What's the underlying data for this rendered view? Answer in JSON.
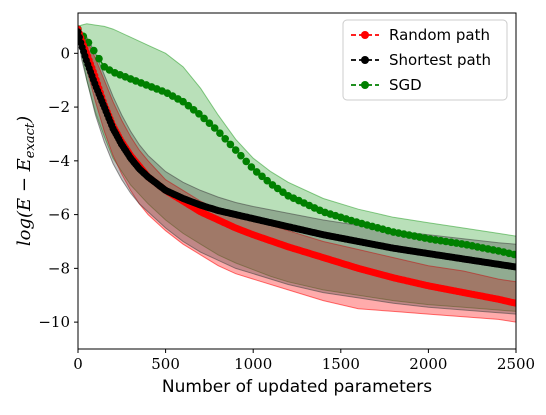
{
  "chart_data": {
    "type": "line",
    "xlabel": "Number of updated parameters",
    "ylabel_main": "log(E − E",
    "ylabel_sub": "exact",
    "ylabel_close": ")",
    "xlim": [
      0,
      2500
    ],
    "ylim": [
      -11,
      1.5
    ],
    "xticks": [
      0,
      500,
      1000,
      1500,
      2000,
      2500
    ],
    "xtick_labels": [
      "0",
      "500",
      "1000",
      "1500",
      "2000",
      "2500"
    ],
    "yticks": [
      0,
      -2,
      -4,
      -6,
      -8,
      -10
    ],
    "ytick_labels": [
      "0",
      "−2",
      "−4",
      "−6",
      "−8",
      "−10"
    ],
    "grid": false,
    "legend_position": "top-right",
    "series": [
      {
        "name": "Random path",
        "color": "#ff0000",
        "fill_color": "#ff0000",
        "line_style": "dashed",
        "marker": "circle",
        "x": [
          0,
          20,
          50,
          100,
          150,
          200,
          250,
          300,
          350,
          400,
          500,
          600,
          700,
          800,
          900,
          1000,
          1200,
          1400,
          1600,
          1800,
          2000,
          2200,
          2400,
          2500
        ],
        "y": [
          0.9,
          0.5,
          0.0,
          -0.9,
          -1.9,
          -2.7,
          -3.3,
          -3.8,
          -4.2,
          -4.6,
          -5.1,
          -5.5,
          -5.9,
          -6.2,
          -6.5,
          -6.75,
          -7.2,
          -7.6,
          -8.0,
          -8.35,
          -8.65,
          -8.9,
          -9.15,
          -9.3
        ],
        "upper": [
          1.0,
          0.8,
          0.5,
          -0.2,
          -1.0,
          -1.8,
          -2.5,
          -3.1,
          -3.6,
          -4.0,
          -4.7,
          -5.1,
          -5.5,
          -5.8,
          -6.0,
          -6.2,
          -6.6,
          -7.0,
          -7.3,
          -7.6,
          -7.9,
          -8.1,
          -8.4,
          -8.5
        ],
        "lower": [
          0.9,
          0.2,
          -0.6,
          -1.8,
          -2.9,
          -3.8,
          -4.5,
          -5.1,
          -5.6,
          -6.0,
          -6.6,
          -7.1,
          -7.5,
          -7.9,
          -8.2,
          -8.4,
          -8.8,
          -9.2,
          -9.5,
          -9.6,
          -9.7,
          -9.8,
          -9.9,
          -10.0
        ]
      },
      {
        "name": "Shortest path",
        "color": "#000000",
        "fill_color": "#404040",
        "line_style": "dashed",
        "marker": "circle",
        "x": [
          0,
          20,
          50,
          100,
          150,
          200,
          250,
          300,
          350,
          400,
          500,
          600,
          700,
          800,
          900,
          1000,
          1200,
          1400,
          1600,
          1800,
          2000,
          2200,
          2400,
          2500
        ],
        "y": [
          0.8,
          0.3,
          -0.3,
          -1.2,
          -2.0,
          -2.8,
          -3.4,
          -3.9,
          -4.3,
          -4.6,
          -5.1,
          -5.4,
          -5.65,
          -5.85,
          -6.0,
          -6.15,
          -6.45,
          -6.75,
          -7.0,
          -7.25,
          -7.45,
          -7.65,
          -7.85,
          -7.95
        ],
        "upper": [
          1.0,
          0.8,
          0.6,
          0.0,
          -0.8,
          -1.6,
          -2.3,
          -2.9,
          -3.4,
          -3.8,
          -4.4,
          -4.8,
          -5.1,
          -5.35,
          -5.55,
          -5.7,
          -5.95,
          -6.2,
          -6.4,
          -6.6,
          -6.75,
          -6.9,
          -7.05,
          -7.1
        ],
        "lower": [
          0.8,
          -0.2,
          -1.0,
          -2.3,
          -3.3,
          -4.1,
          -4.7,
          -5.2,
          -5.6,
          -5.9,
          -6.5,
          -7.0,
          -7.4,
          -7.7,
          -8.0,
          -8.2,
          -8.6,
          -8.9,
          -9.1,
          -9.3,
          -9.45,
          -9.55,
          -9.65,
          -9.7
        ]
      },
      {
        "name": "SGD",
        "color": "#008000",
        "fill_color": "#2ca02c",
        "line_style": "dashed",
        "marker": "circle",
        "x": [
          0,
          20,
          50,
          100,
          150,
          200,
          300,
          400,
          500,
          600,
          700,
          800,
          900,
          1000,
          1100,
          1200,
          1400,
          1600,
          1800,
          2000,
          2200,
          2400,
          2500
        ],
        "y": [
          0.9,
          0.7,
          0.5,
          0.0,
          -0.5,
          -0.7,
          -0.95,
          -1.2,
          -1.45,
          -1.8,
          -2.3,
          -2.9,
          -3.6,
          -4.3,
          -4.85,
          -5.3,
          -5.9,
          -6.3,
          -6.65,
          -6.9,
          -7.1,
          -7.35,
          -7.5
        ],
        "upper": [
          1.0,
          1.05,
          1.1,
          1.05,
          1.0,
          0.9,
          0.6,
          0.3,
          0.0,
          -0.5,
          -1.3,
          -2.3,
          -3.2,
          -3.9,
          -4.4,
          -4.8,
          -5.4,
          -5.8,
          -6.1,
          -6.3,
          -6.5,
          -6.7,
          -6.8
        ],
        "lower": [
          0.9,
          0.0,
          -1.0,
          -2.2,
          -3.1,
          -3.9,
          -4.9,
          -5.6,
          -6.2,
          -6.7,
          -7.1,
          -7.5,
          -7.8,
          -8.05,
          -8.3,
          -8.5,
          -8.8,
          -9.0,
          -9.2,
          -9.35,
          -9.45,
          -9.55,
          -9.6
        ]
      }
    ]
  }
}
